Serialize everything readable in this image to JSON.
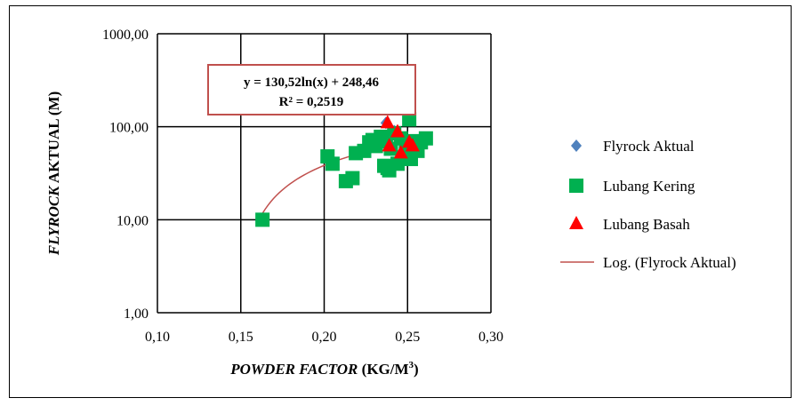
{
  "chart_data": {
    "type": "scatter",
    "xlabel": {
      "italic": "POWDER FACTOR",
      "normal": " (KG/M",
      "sup": "3",
      "close": ")"
    },
    "ylabel": {
      "italic": "FLYROCK",
      "normal": " AKTUAL (M)"
    },
    "xlim": [
      0.1,
      0.3
    ],
    "ylim": [
      1,
      1000
    ],
    "yscale": "log",
    "grid": true,
    "legend_position": "right",
    "x_ticks": [
      {
        "value": 0.1,
        "label": "0,10"
      },
      {
        "value": 0.15,
        "label": "0,15"
      },
      {
        "value": 0.2,
        "label": "0,20"
      },
      {
        "value": 0.25,
        "label": "0,25"
      },
      {
        "value": 0.3,
        "label": "0,30"
      }
    ],
    "y_ticks": [
      {
        "value": 1,
        "label": "1,00"
      },
      {
        "value": 10,
        "label": "10,00"
      },
      {
        "value": 100,
        "label": "100,00"
      },
      {
        "value": 1000,
        "label": "1000,00"
      }
    ],
    "trend": {
      "name": "Log. (Flyrock Aktual)",
      "a": 130.52,
      "b": 248.46,
      "x_range": [
        0.163,
        0.262
      ],
      "color": "#c0504d",
      "equation": "y = 130,52ln(x) + 248,46",
      "r2": "R² = 0,2519"
    },
    "series": [
      {
        "name": "Flyrock Aktual",
        "marker": "diamond",
        "color": "#4f81bd",
        "points": [
          [
            0.237,
            110
          ],
          [
            0.252,
            68
          ],
          [
            0.242,
            90
          ]
        ]
      },
      {
        "name": "Lubang Kering",
        "marker": "square",
        "color": "#00b050",
        "points": [
          [
            0.163,
            10
          ],
          [
            0.202,
            48
          ],
          [
            0.205,
            40
          ],
          [
            0.213,
            26
          ],
          [
            0.217,
            28
          ],
          [
            0.219,
            52
          ],
          [
            0.224,
            55
          ],
          [
            0.227,
            68
          ],
          [
            0.229,
            72
          ],
          [
            0.231,
            62
          ],
          [
            0.234,
            78
          ],
          [
            0.236,
            38
          ],
          [
            0.237,
            70
          ],
          [
            0.238,
            36
          ],
          [
            0.239,
            34
          ],
          [
            0.24,
            58
          ],
          [
            0.242,
            85
          ],
          [
            0.244,
            40
          ],
          [
            0.246,
            75
          ],
          [
            0.249,
            60
          ],
          [
            0.251,
            120
          ],
          [
            0.252,
            45
          ],
          [
            0.254,
            70
          ],
          [
            0.256,
            55
          ],
          [
            0.258,
            68
          ],
          [
            0.261,
            75
          ]
        ]
      },
      {
        "name": "Lubang Basah",
        "marker": "triangle",
        "color": "#ff0000",
        "points": [
          [
            0.238,
            110
          ],
          [
            0.239,
            62
          ],
          [
            0.244,
            88
          ],
          [
            0.246,
            52
          ],
          [
            0.251,
            68
          ],
          [
            0.253,
            62
          ]
        ]
      }
    ]
  }
}
